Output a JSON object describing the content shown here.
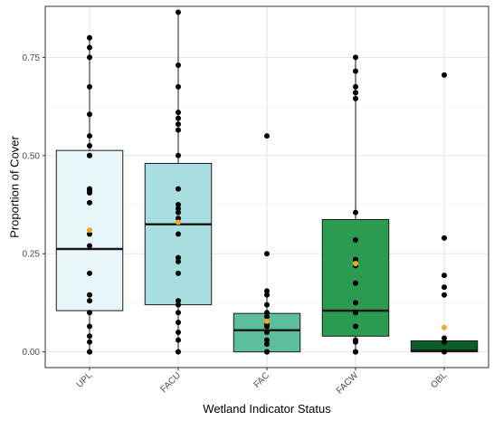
{
  "chart_data": {
    "type": "boxplot",
    "xlabel": "Wetland Indicator Status",
    "ylabel": "Proportion of Cover",
    "ylim": [
      -0.04,
      0.88
    ],
    "yticks": [
      0,
      0.25,
      0.5,
      0.75
    ],
    "ytick_labels": [
      "0.00",
      "0.25",
      "0.50",
      "0.75"
    ],
    "grid": true,
    "legend": "none",
    "mean_marker_color": "#f5a623",
    "categories": [
      "UPL",
      "FACU",
      "FAC",
      "FACW",
      "OBL"
    ],
    "groups": [
      {
        "name": "UPL",
        "fill": "#e8f6fa",
        "q1": 0.105,
        "median": 0.262,
        "q3": 0.513,
        "whisker_low": 0.0,
        "whisker_high": 0.8,
        "mean": 0.31,
        "points": [
          0.8,
          0.775,
          0.75,
          0.675,
          0.605,
          0.55,
          0.525,
          0.5,
          0.5,
          0.415,
          0.41,
          0.405,
          0.38,
          0.3,
          0.27,
          0.2,
          0.145,
          0.13,
          0.1,
          0.065,
          0.04,
          0.025,
          0.0,
          0.0
        ]
      },
      {
        "name": "FACU",
        "fill": "#a8dedf",
        "q1": 0.12,
        "median": 0.325,
        "q3": 0.48,
        "whisker_low": 0.0,
        "whisker_high": 0.865,
        "mean": 0.33,
        "points": [
          0.865,
          0.73,
          0.675,
          0.61,
          0.595,
          0.58,
          0.565,
          0.5,
          0.415,
          0.375,
          0.365,
          0.355,
          0.34,
          0.3,
          0.24,
          0.23,
          0.2,
          0.13,
          0.12,
          0.1,
          0.075,
          0.05,
          0.03,
          0.0
        ]
      },
      {
        "name": "FAC",
        "fill": "#5cbf99",
        "q1": 0.0,
        "median": 0.055,
        "q3": 0.098,
        "whisker_low": 0.0,
        "whisker_high": 0.155,
        "mean": 0.078,
        "points": [
          0.55,
          0.25,
          0.155,
          0.145,
          0.12,
          0.1,
          0.09,
          0.07,
          0.065,
          0.05,
          0.03,
          0.02,
          0.0,
          0.0
        ]
      },
      {
        "name": "FACW",
        "fill": "#2a9b51",
        "q1": 0.04,
        "median": 0.105,
        "q3": 0.337,
        "whisker_low": 0.0,
        "whisker_high": 0.75,
        "mean": 0.225,
        "points": [
          0.75,
          0.715,
          0.675,
          0.66,
          0.645,
          0.355,
          0.285,
          0.235,
          0.22,
          0.175,
          0.125,
          0.1,
          0.065,
          0.03,
          0.025,
          0.0,
          0.0
        ]
      },
      {
        "name": "OBL",
        "fill": "#0b5e27",
        "q1": 0.0,
        "median": 0.003,
        "q3": 0.028,
        "whisker_low": 0.0,
        "whisker_high": 0.035,
        "mean": 0.062,
        "points": [
          0.705,
          0.29,
          0.195,
          0.165,
          0.145,
          0.035,
          0.025,
          0.0
        ]
      }
    ]
  }
}
